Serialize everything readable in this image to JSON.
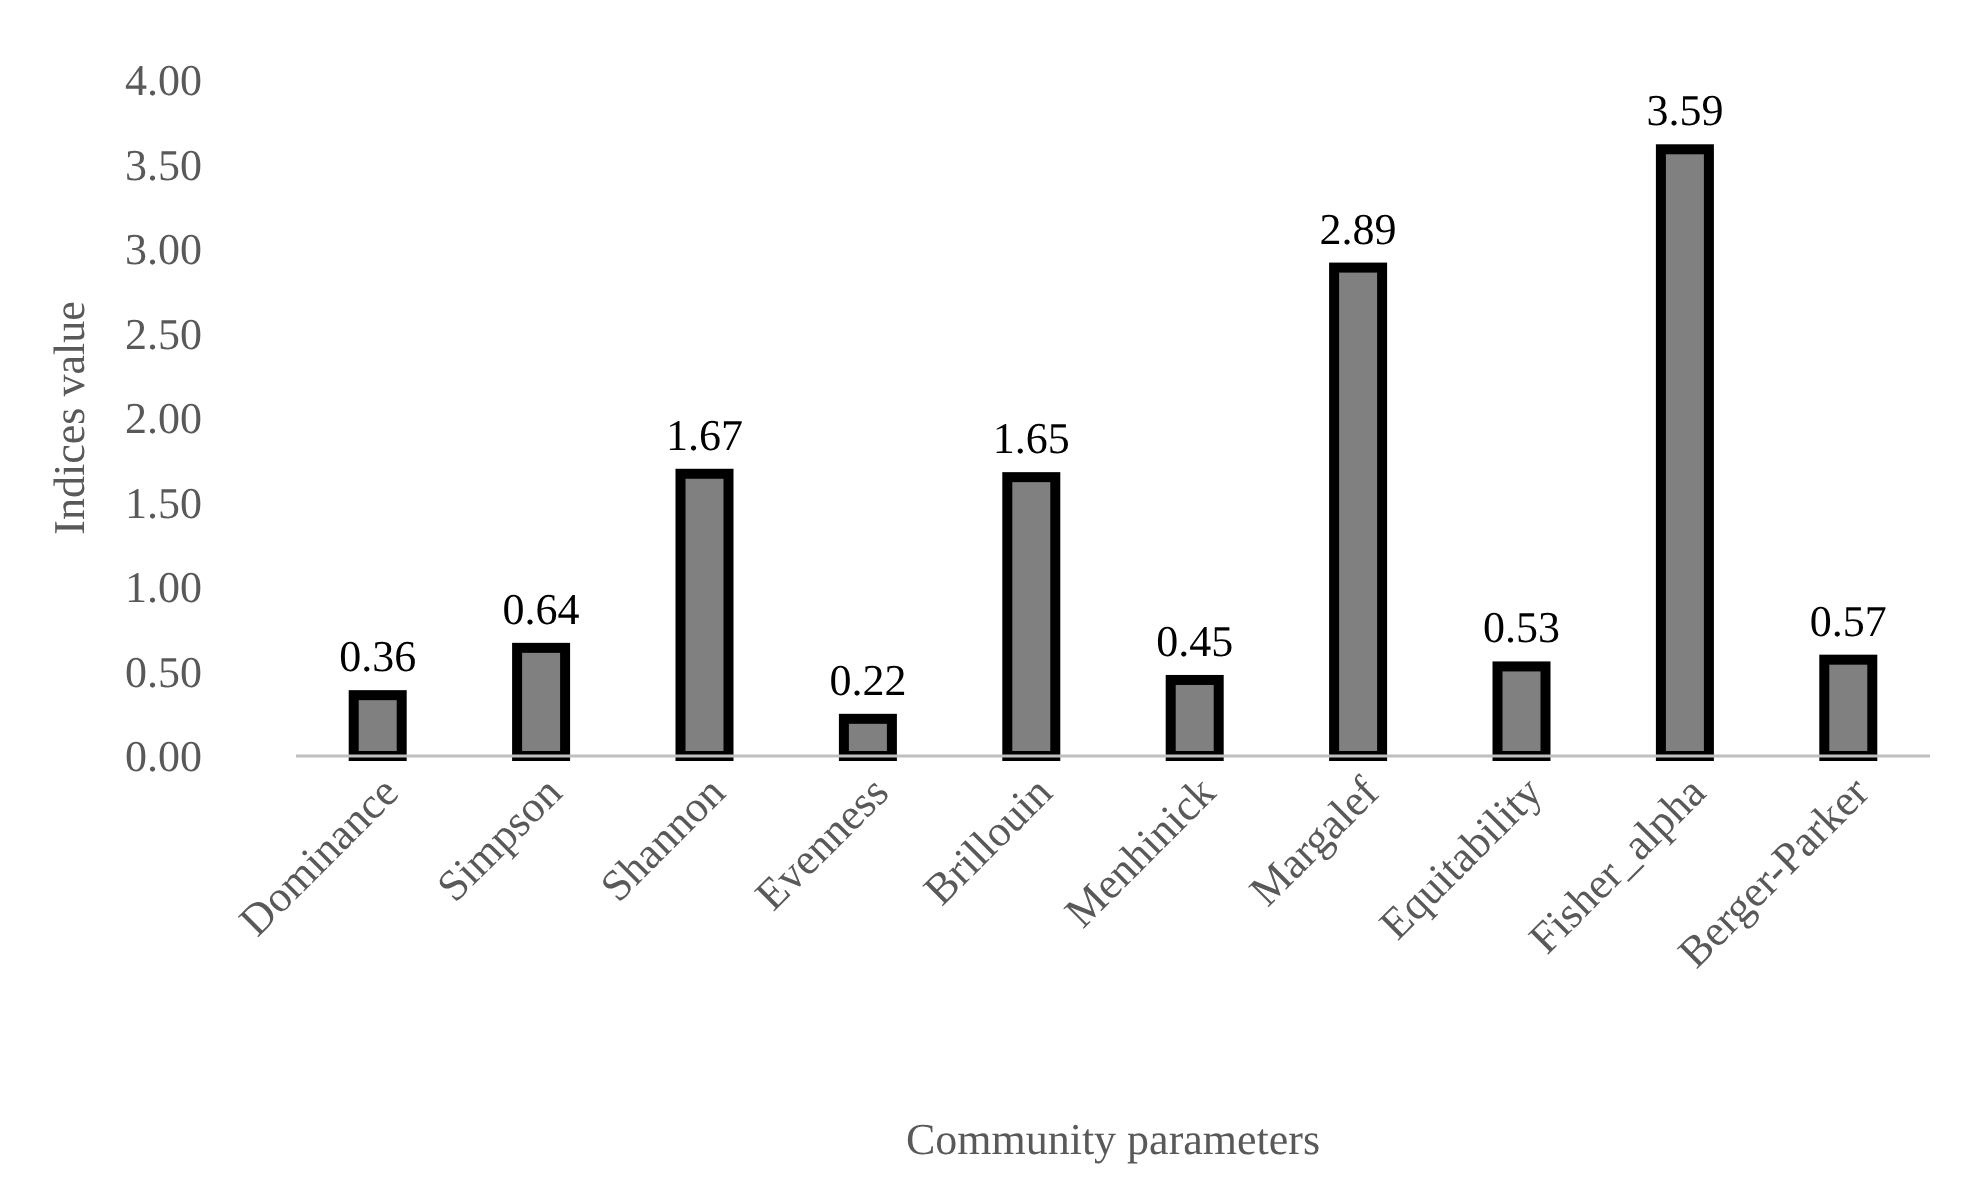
{
  "chart_data": {
    "type": "bar",
    "xlabel": "Community parameters",
    "ylabel": "Indices value",
    "categories": [
      "Dominance",
      "Simpson",
      "Shannon",
      "Evenness",
      "Brillouin",
      "Menhinick",
      "Margalef",
      "Equitability",
      "Fisher_alpha",
      "Berger-Parker"
    ],
    "values": [
      0.36,
      0.64,
      1.67,
      0.22,
      1.65,
      0.45,
      2.89,
      0.53,
      3.59,
      0.57
    ],
    "color": "#808080",
    "ylim": [
      0,
      4
    ],
    "yticks": [
      {
        "value": 0,
        "label": "0.00"
      },
      {
        "value": 0.5,
        "label": "0.50"
      },
      {
        "value": 1,
        "label": "1.00"
      },
      {
        "value": 1.5,
        "label": "1.50"
      },
      {
        "value": 2,
        "label": "2.00"
      },
      {
        "value": 2.5,
        "label": "2.50"
      },
      {
        "value": 3,
        "label": "3.00"
      },
      {
        "value": 3.5,
        "label": "3.50"
      },
      {
        "value": 4,
        "label": "4.00"
      }
    ],
    "data_labels": true,
    "grid": false
  }
}
